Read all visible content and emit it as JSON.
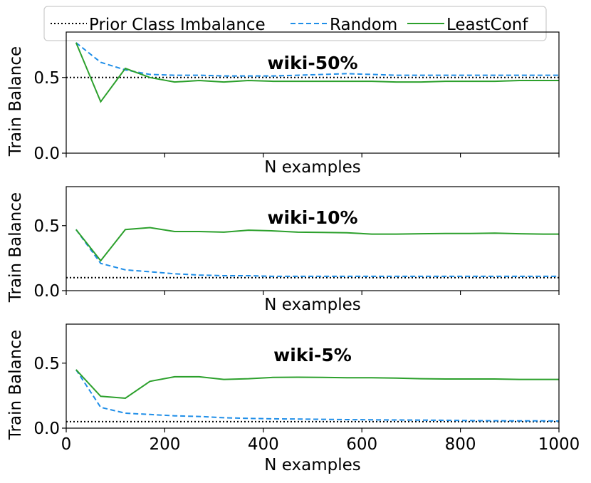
{
  "legend": {
    "placement": "top-center",
    "items": [
      {
        "label": "Prior Class Imbalance",
        "color": "#000000",
        "style": "dotted"
      },
      {
        "label": "Random",
        "color": "#1f8ee8",
        "style": "dashed"
      },
      {
        "label": "LeastConf",
        "color": "#2ca02c",
        "style": "solid"
      }
    ]
  },
  "chart_data": [
    {
      "type": "line",
      "title": "wiki-50%",
      "xlabel": "N examples",
      "ylabel": "Train Balance",
      "xlim": [
        0,
        1000
      ],
      "ylim": [
        0,
        0.8
      ],
      "yticks": [
        "0.0",
        "0.5"
      ],
      "xticks": [],
      "grid": false,
      "prior": 0.5,
      "series": [
        {
          "name": "Random",
          "x": [
            20,
            70,
            120,
            170,
            220,
            270,
            320,
            370,
            420,
            470,
            520,
            570,
            620,
            670,
            720,
            770,
            820,
            870,
            920,
            970,
            1000
          ],
          "y": [
            0.73,
            0.6,
            0.55,
            0.52,
            0.515,
            0.515,
            0.51,
            0.51,
            0.51,
            0.515,
            0.52,
            0.525,
            0.52,
            0.515,
            0.515,
            0.515,
            0.515,
            0.515,
            0.515,
            0.515,
            0.515
          ]
        },
        {
          "name": "LeastConf",
          "x": [
            20,
            70,
            120,
            170,
            220,
            270,
            320,
            370,
            420,
            470,
            520,
            570,
            620,
            670,
            720,
            770,
            820,
            870,
            920,
            970,
            1000
          ],
          "y": [
            0.73,
            0.34,
            0.56,
            0.5,
            0.47,
            0.48,
            0.47,
            0.48,
            0.475,
            0.475,
            0.475,
            0.475,
            0.475,
            0.47,
            0.47,
            0.475,
            0.475,
            0.475,
            0.48,
            0.48,
            0.48
          ]
        }
      ]
    },
    {
      "type": "line",
      "title": "wiki-10%",
      "xlabel": "N examples",
      "ylabel": "Train Balance",
      "xlim": [
        0,
        1000
      ],
      "ylim": [
        0,
        0.8
      ],
      "yticks": [
        "0.0",
        "0.5"
      ],
      "xticks": [],
      "grid": false,
      "prior": 0.1,
      "series": [
        {
          "name": "Random",
          "x": [
            20,
            70,
            120,
            170,
            220,
            270,
            320,
            370,
            420,
            470,
            520,
            570,
            620,
            670,
            720,
            770,
            820,
            870,
            920,
            970,
            1000
          ],
          "y": [
            0.47,
            0.21,
            0.16,
            0.145,
            0.13,
            0.12,
            0.115,
            0.115,
            0.11,
            0.11,
            0.11,
            0.11,
            0.11,
            0.11,
            0.11,
            0.11,
            0.11,
            0.11,
            0.11,
            0.11,
            0.11
          ]
        },
        {
          "name": "LeastConf",
          "x": [
            20,
            70,
            120,
            170,
            220,
            270,
            320,
            370,
            420,
            470,
            520,
            570,
            620,
            670,
            720,
            770,
            820,
            870,
            920,
            970,
            1000
          ],
          "y": [
            0.47,
            0.23,
            0.47,
            0.485,
            0.455,
            0.455,
            0.45,
            0.465,
            0.46,
            0.45,
            0.448,
            0.445,
            0.435,
            0.435,
            0.438,
            0.44,
            0.44,
            0.442,
            0.438,
            0.435,
            0.435
          ]
        }
      ]
    },
    {
      "type": "line",
      "title": "wiki-5%",
      "xlabel": "N examples",
      "ylabel": "Train Balance",
      "xlim": [
        0,
        1000
      ],
      "ylim": [
        0,
        0.8
      ],
      "yticks": [
        "0.0",
        "0.5"
      ],
      "xticks": [
        "0",
        "200",
        "400",
        "600",
        "800",
        "1000"
      ],
      "grid": false,
      "prior": 0.05,
      "series": [
        {
          "name": "Random",
          "x": [
            20,
            70,
            120,
            170,
            220,
            270,
            320,
            370,
            420,
            470,
            520,
            570,
            620,
            670,
            720,
            770,
            820,
            870,
            920,
            970,
            1000
          ],
          "y": [
            0.45,
            0.16,
            0.115,
            0.105,
            0.095,
            0.09,
            0.08,
            0.075,
            0.072,
            0.07,
            0.068,
            0.066,
            0.064,
            0.063,
            0.062,
            0.06,
            0.058,
            0.057,
            0.056,
            0.056,
            0.055
          ]
        },
        {
          "name": "LeastConf",
          "x": [
            20,
            70,
            120,
            170,
            220,
            270,
            320,
            370,
            420,
            470,
            520,
            570,
            620,
            670,
            720,
            770,
            820,
            870,
            920,
            970,
            1000
          ],
          "y": [
            0.45,
            0.245,
            0.23,
            0.36,
            0.395,
            0.395,
            0.375,
            0.38,
            0.39,
            0.392,
            0.39,
            0.388,
            0.388,
            0.385,
            0.38,
            0.378,
            0.378,
            0.378,
            0.375,
            0.375,
            0.375
          ]
        }
      ]
    }
  ]
}
